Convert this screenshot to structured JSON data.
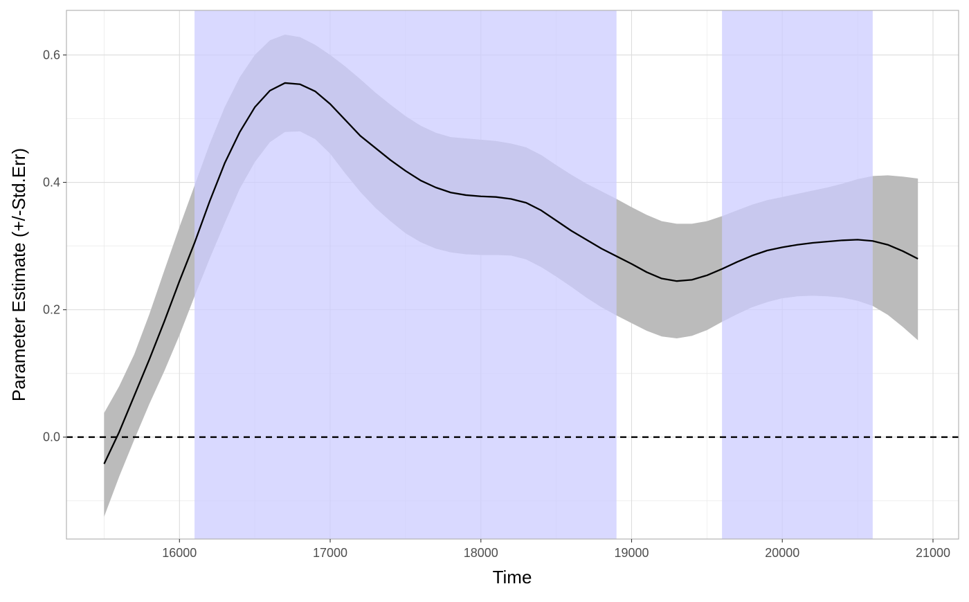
{
  "chart_data": {
    "type": "line",
    "title": "",
    "xlabel": "Time",
    "ylabel": "Parameter Estimate (+/-Std.Err)",
    "xlim": [
      15250,
      21170
    ],
    "ylim": [
      -0.16,
      0.67
    ],
    "x_ticks": [
      16000,
      17000,
      18000,
      19000,
      20000,
      21000
    ],
    "x_minor_ticks": [
      15500,
      16500,
      17500,
      18500,
      19500,
      20500
    ],
    "y_ticks": [
      0.0,
      0.2,
      0.4,
      0.6
    ],
    "y_tick_labels": [
      "0.0",
      "0.2",
      "0.4",
      "0.6"
    ],
    "y_minor_ticks": [
      -0.1,
      0.1,
      0.3,
      0.5
    ],
    "grid": true,
    "legend": "none",
    "reference_line": {
      "y": 0,
      "style": "dashed",
      "color": "#000000"
    },
    "highlight_regions": [
      {
        "x_start": 16100,
        "x_end": 18900,
        "color": "#ccccff"
      },
      {
        "x_start": 19600,
        "x_end": 20600,
        "color": "#ccccff"
      }
    ],
    "series": [
      {
        "x": [
          15500,
          15600,
          15700,
          15800,
          15900,
          16000,
          16100,
          16200,
          16300,
          16400,
          16500,
          16600,
          16700,
          16800,
          16900,
          17000,
          17100,
          17200,
          17300,
          17400,
          17500,
          17600,
          17700,
          17800,
          17900,
          18000,
          18100,
          18200,
          18300,
          18400,
          18500,
          18600,
          18700,
          18800,
          18900,
          19000,
          19100,
          19200,
          19300,
          19400,
          19500,
          19600,
          19700,
          19800,
          19900,
          20000,
          20100,
          20200,
          20300,
          20400,
          20500,
          20600,
          20700,
          20800,
          20900
        ],
        "y": [
          -0.042,
          0.008,
          0.065,
          0.122,
          0.182,
          0.245,
          0.305,
          0.37,
          0.43,
          0.479,
          0.518,
          0.544,
          0.556,
          0.554,
          0.543,
          0.523,
          0.498,
          0.473,
          0.454,
          0.435,
          0.418,
          0.403,
          0.392,
          0.384,
          0.38,
          0.378,
          0.377,
          0.374,
          0.368,
          0.356,
          0.34,
          0.324,
          0.31,
          0.296,
          0.284,
          0.272,
          0.259,
          0.249,
          0.245,
          0.247,
          0.254,
          0.264,
          0.275,
          0.285,
          0.293,
          0.298,
          0.302,
          0.305,
          0.307,
          0.309,
          0.31,
          0.308,
          0.302,
          0.292,
          0.28
        ],
        "lower": [
          -0.125,
          -0.062,
          -0.004,
          0.052,
          0.104,
          0.16,
          0.221,
          0.28,
          0.336,
          0.39,
          0.432,
          0.463,
          0.479,
          0.48,
          0.468,
          0.445,
          0.414,
          0.385,
          0.36,
          0.339,
          0.32,
          0.306,
          0.296,
          0.29,
          0.287,
          0.286,
          0.286,
          0.285,
          0.279,
          0.267,
          0.252,
          0.236,
          0.219,
          0.204,
          0.191,
          0.179,
          0.167,
          0.158,
          0.155,
          0.159,
          0.168,
          0.181,
          0.193,
          0.204,
          0.212,
          0.218,
          0.221,
          0.222,
          0.221,
          0.219,
          0.214,
          0.206,
          0.192,
          0.173,
          0.152
        ],
        "upper": [
          0.038,
          0.08,
          0.13,
          0.193,
          0.262,
          0.33,
          0.395,
          0.46,
          0.518,
          0.565,
          0.6,
          0.623,
          0.632,
          0.628,
          0.616,
          0.6,
          0.582,
          0.562,
          0.541,
          0.522,
          0.504,
          0.489,
          0.478,
          0.471,
          0.469,
          0.467,
          0.465,
          0.461,
          0.455,
          0.443,
          0.427,
          0.412,
          0.398,
          0.386,
          0.374,
          0.361,
          0.349,
          0.339,
          0.335,
          0.335,
          0.339,
          0.347,
          0.356,
          0.365,
          0.372,
          0.377,
          0.382,
          0.387,
          0.392,
          0.398,
          0.405,
          0.41,
          0.411,
          0.409,
          0.406
        ],
        "line_color": "#000000",
        "band_color": "#bbbbbb"
      }
    ]
  }
}
